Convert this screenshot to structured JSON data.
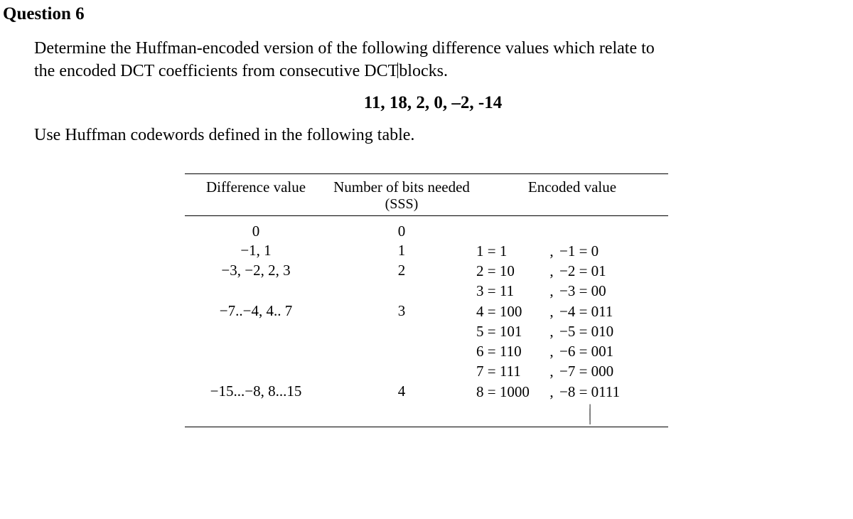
{
  "heading": "Question 6",
  "prompt_line1": "Determine the Huffman-encoded version of the following difference values which relate to",
  "prompt_line2_a": "the encoded DCT coefficients from consecutive DCT",
  "prompt_line2_b": "blocks.",
  "values": "11, 18, 2, 0, –2, -14",
  "instruction": "Use Huffman codewords defined in the following table.",
  "table": {
    "headers": {
      "col1": "Difference value",
      "col2": "Number of bits needed",
      "col2_sub": "(SSS)",
      "col3": "Encoded value"
    },
    "rows": [
      {
        "diff": "0",
        "bits": "0",
        "enc_left": "",
        "enc_right": ""
      },
      {
        "diff": "−1, 1",
        "bits": "1",
        "enc_left": "1 = 1",
        "enc_right": "−1 = 0"
      },
      {
        "diff": "−3, −2, 2, 3",
        "bits": "2",
        "enc_left": "2 = 10",
        "enc_right": "−2 = 01"
      },
      {
        "diff": "",
        "bits": "",
        "enc_left": "3 = 11",
        "enc_right": "−3 = 00"
      },
      {
        "diff": "−7..−4, 4.. 7",
        "bits": "3",
        "enc_left": "4 = 100",
        "enc_right": "−4 = 011"
      },
      {
        "diff": "",
        "bits": "",
        "enc_left": "5 = 101",
        "enc_right": "−5 = 010"
      },
      {
        "diff": "",
        "bits": "",
        "enc_left": "6 = 110",
        "enc_right": "−6 = 001"
      },
      {
        "diff": "",
        "bits": "",
        "enc_left": "7 = 111",
        "enc_right": "−7 = 000"
      },
      {
        "diff": "−15...−8, 8...15",
        "bits": "4",
        "enc_left": "8 = 1000",
        "enc_right": "−8 = 0111"
      }
    ]
  }
}
